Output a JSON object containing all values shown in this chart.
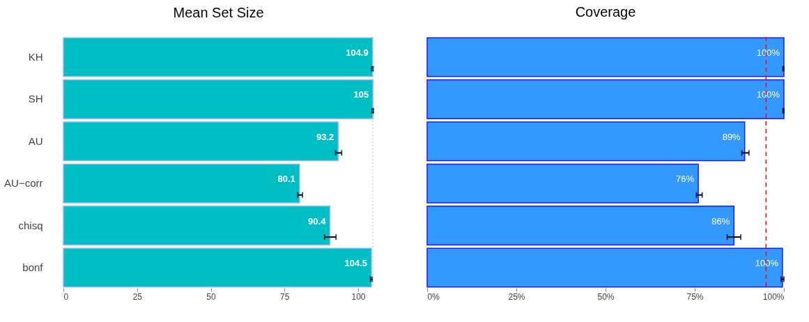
{
  "chart_data": [
    {
      "type": "bar",
      "orientation": "horizontal",
      "title": "Mean Set Size",
      "categories": [
        "KH",
        "SH",
        "AU",
        "AU−corr",
        "chisq",
        "bonf"
      ],
      "series": [
        {
          "color": "#00bfc4",
          "values": [
            104.9,
            105,
            93.2,
            80.1,
            90.4,
            104.5
          ],
          "errors": [
            [
              104.6,
              105.1
            ],
            [
              104.7,
              105.2
            ],
            [
              92.3,
              94.4
            ],
            [
              79.5,
              81.1
            ],
            [
              88.6,
              92.5
            ],
            [
              104.2,
              104.8
            ]
          ]
        }
      ],
      "data_labels": true,
      "xlim": [
        0,
        105.2
      ],
      "xticks": [
        0,
        25,
        50,
        75,
        100
      ],
      "ref_lines": [
        {
          "axis": "x",
          "value": 105,
          "color": "#9ecae1",
          "line_style": "dotted"
        }
      ],
      "grid": false
    },
    {
      "type": "bar",
      "orientation": "horizontal",
      "title": "Coverage",
      "categories": [
        null,
        null,
        null,
        null,
        null,
        null
      ],
      "series": [
        {
          "color": "#3399ff",
          "values": [
            100,
            100,
            89,
            76,
            86,
            99.6
          ],
          "value_labels": [
            "100%",
            "100%",
            "89%",
            "76%",
            "86%",
            "100%"
          ],
          "errors": [
            [
              99.7,
              100
            ],
            [
              99.7,
              100
            ],
            [
              88.2,
              90.2
            ],
            [
              75.5,
              77.1
            ],
            [
              84.1,
              87.9
            ],
            [
              99.2,
              100
            ]
          ]
        }
      ],
      "xlim": [
        0,
        100
      ],
      "xticks": [
        {
          "value": 0,
          "label": "0%"
        },
        {
          "value": 25,
          "label": "25%"
        },
        {
          "value": 50,
          "label": "50%"
        },
        {
          "value": 75,
          "label": "75%"
        },
        {
          "value": 100,
          "label": "100%"
        }
      ],
      "ref_lines": [
        {
          "axis": "x",
          "value": 95,
          "color": "#ff0000",
          "line_style": "dashed"
        }
      ],
      "tick_labels": "x",
      "grid": false
    }
  ]
}
